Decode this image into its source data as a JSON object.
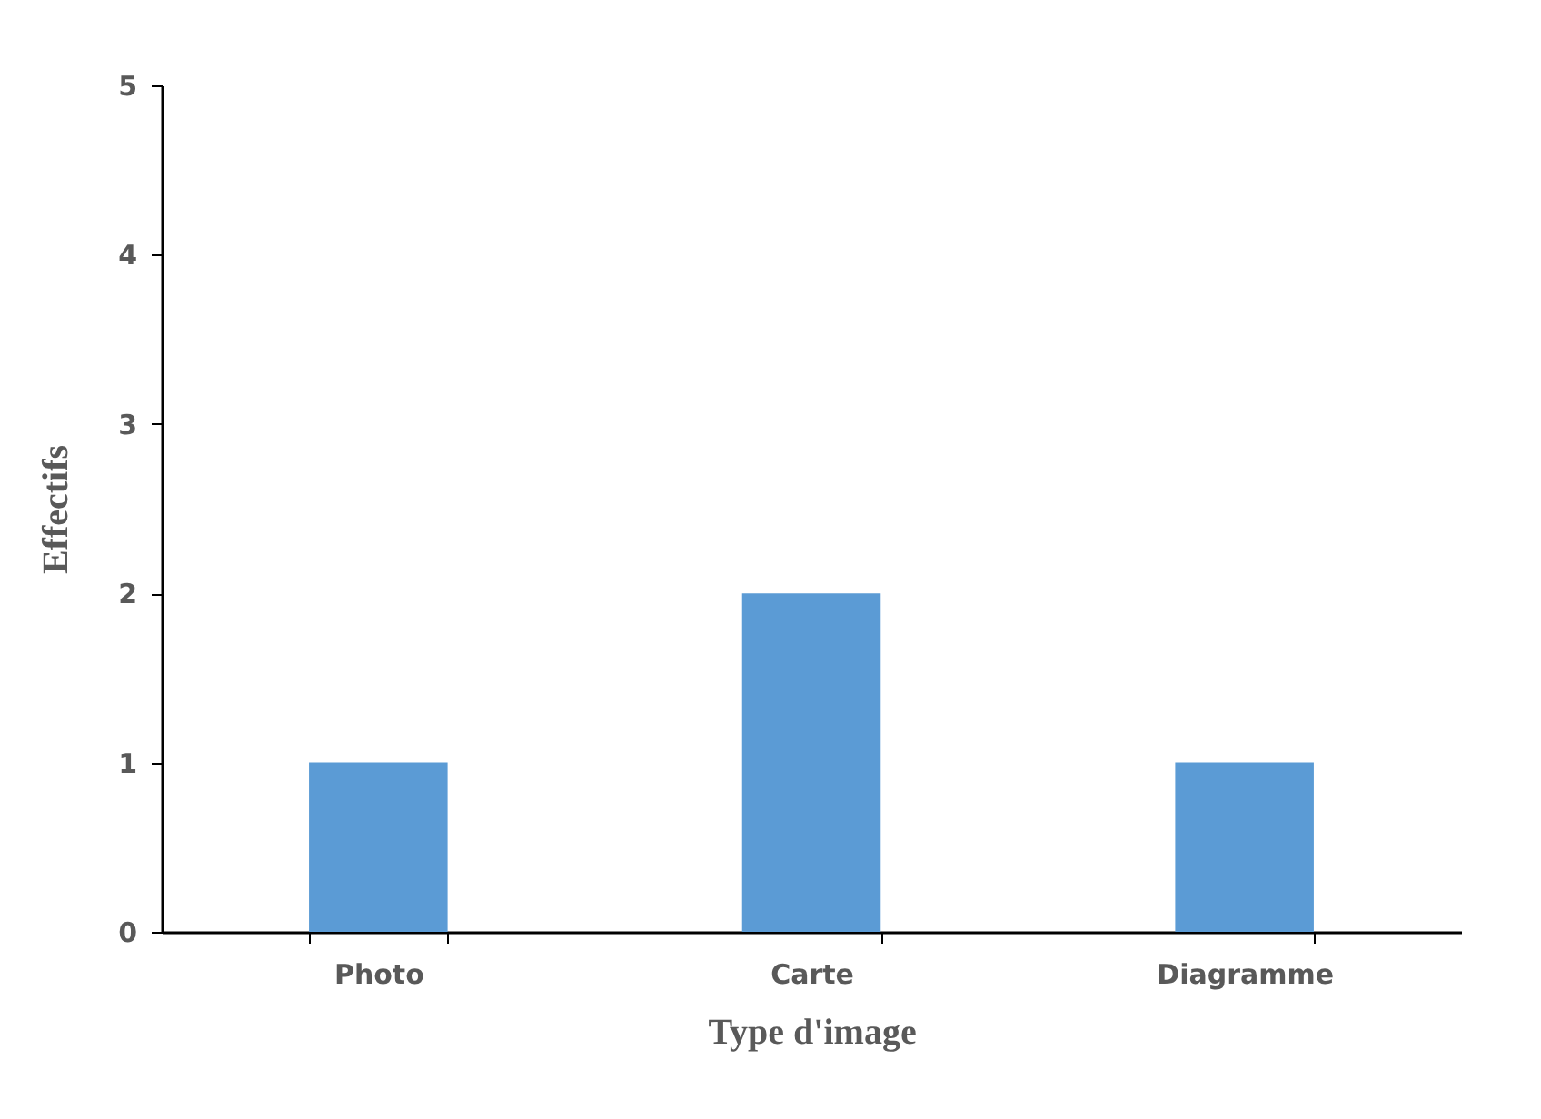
{
  "chart_data": {
    "type": "bar",
    "xlabel": "Type d'image",
    "ylabel": "Effectifs",
    "categories": [
      "Photo",
      "Carte",
      "Diagramme"
    ],
    "values": [
      1,
      2,
      1
    ],
    "color": "#5b9bd5",
    "ylim": [
      0,
      5
    ],
    "yticks": [
      0,
      1,
      2,
      3,
      4,
      5
    ],
    "grid": false
  }
}
